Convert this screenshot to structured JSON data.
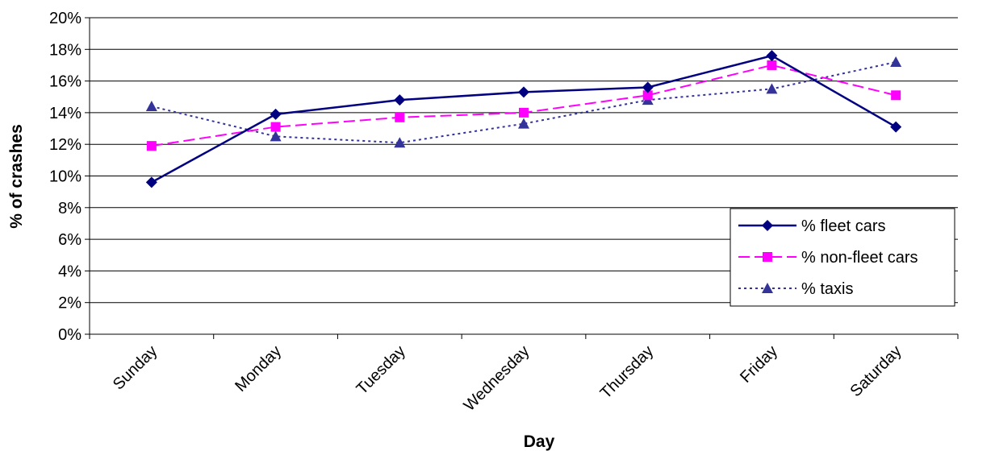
{
  "chart_data": {
    "type": "line",
    "xlabel": "Day",
    "ylabel": "% of crashes",
    "categories": [
      "Sunday",
      "Monday",
      "Tuesday",
      "Wednesday",
      "Thursday",
      "Friday",
      "Saturday"
    ],
    "ylim": [
      0,
      20
    ],
    "yticks": [
      "0%",
      "2%",
      "4%",
      "6%",
      "8%",
      "10%",
      "12%",
      "14%",
      "16%",
      "18%",
      "20%"
    ],
    "grid": true,
    "legend_position": "right",
    "series": [
      {
        "name": "% fleet cars",
        "values": [
          9.6,
          13.9,
          14.8,
          15.3,
          15.6,
          17.6,
          13.1
        ],
        "color": "#000080",
        "dash": "solid",
        "marker": "diamond"
      },
      {
        "name": "% non-fleet cars",
        "values": [
          11.9,
          13.1,
          13.7,
          14.0,
          15.1,
          17.0,
          15.1
        ],
        "color": "#FF00FF",
        "dash": "dashed",
        "marker": "square"
      },
      {
        "name": "% taxis",
        "values": [
          14.4,
          12.5,
          12.1,
          13.3,
          14.8,
          15.5,
          17.2
        ],
        "color": "#333399",
        "dash": "dotted",
        "marker": "triangle"
      }
    ]
  }
}
